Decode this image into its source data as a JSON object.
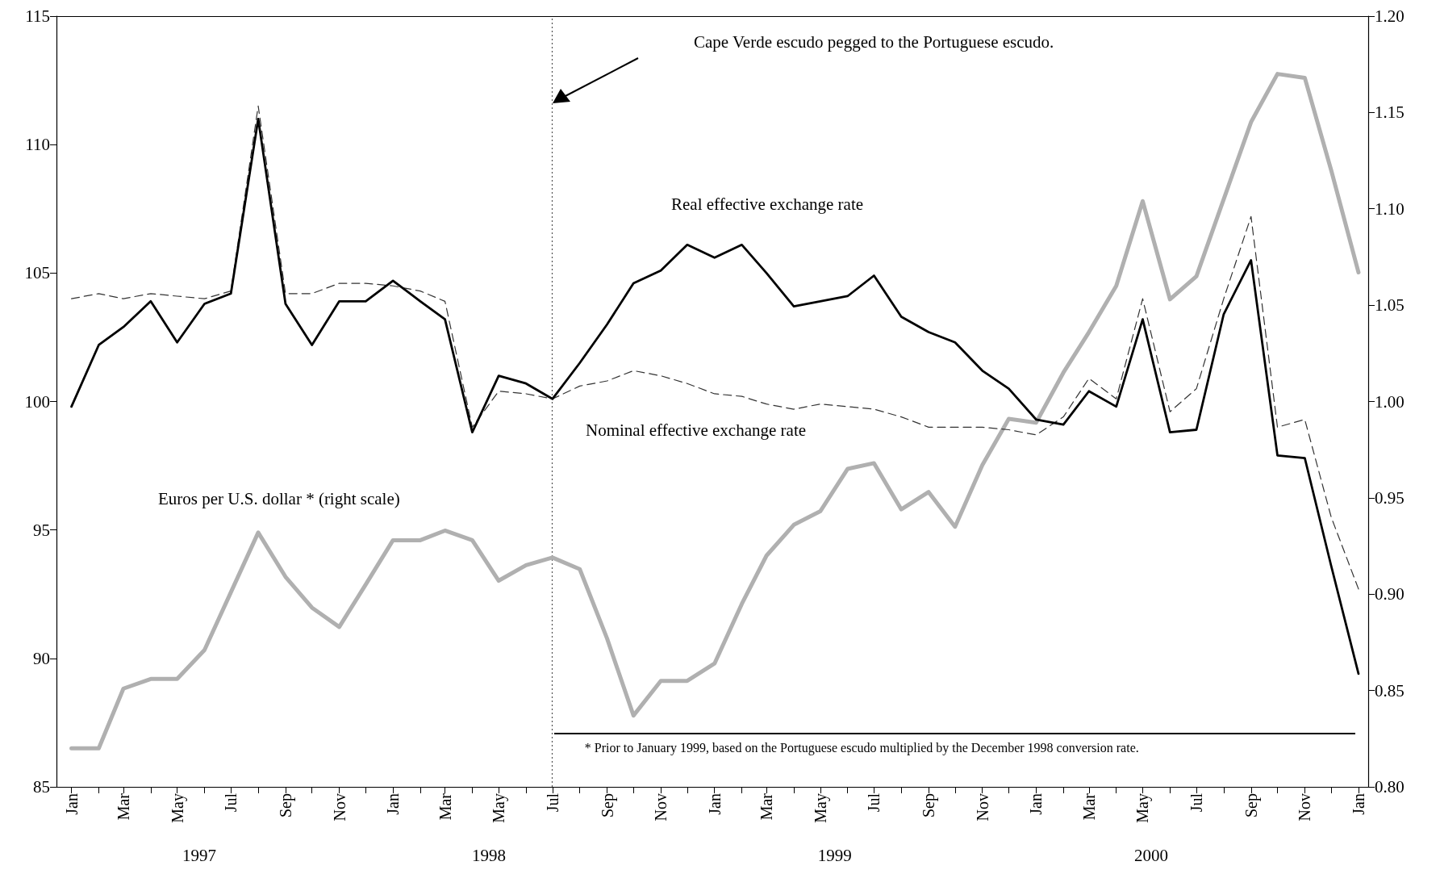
{
  "chart_data": {
    "type": "line",
    "x": [
      "1997-01",
      "1997-02",
      "1997-03",
      "1997-04",
      "1997-05",
      "1997-06",
      "1997-07",
      "1997-08",
      "1997-09",
      "1997-10",
      "1997-11",
      "1997-12",
      "1998-01",
      "1998-02",
      "1998-03",
      "1998-04",
      "1998-05",
      "1998-06",
      "1998-07",
      "1998-08",
      "1998-09",
      "1998-10",
      "1998-11",
      "1998-12",
      "1999-01",
      "1999-02",
      "1999-03",
      "1999-04",
      "1999-05",
      "1999-06",
      "1999-07",
      "1999-08",
      "1999-09",
      "1999-10",
      "1999-11",
      "1999-12",
      "2000-01",
      "2000-02",
      "2000-03",
      "2000-04",
      "2000-05",
      "2000-06",
      "2000-07",
      "2000-08",
      "2000-09",
      "2000-10",
      "2000-11",
      "2000-12",
      "2001-01"
    ],
    "series": [
      {
        "name": "Real effective exchange rate",
        "color": "#000000",
        "line_style": "solid",
        "values": [
          99.8,
          102.2,
          102.9,
          103.9,
          102.3,
          103.8,
          104.2,
          111.0,
          103.8,
          102.2,
          103.9,
          103.9,
          104.7,
          103.9,
          103.2,
          98.8,
          101.0,
          100.7,
          100.1,
          101.5,
          103.0,
          104.6,
          105.1,
          106.1,
          105.6,
          106.1,
          105.0,
          103.7,
          103.9,
          104.1,
          104.9,
          103.3,
          102.7,
          102.3,
          101.2,
          100.5,
          99.3,
          99.1,
          100.4,
          99.8,
          103.2,
          98.8,
          98.9,
          103.4,
          105.5,
          97.9,
          97.8,
          93.6,
          89.4
        ]
      },
      {
        "name": "Nominal effective exchange rate",
        "color": "#333333",
        "line_style": "dashed",
        "values": [
          104.0,
          104.2,
          104.0,
          104.2,
          104.1,
          104.0,
          104.3,
          111.5,
          104.2,
          104.2,
          104.6,
          104.6,
          104.5,
          104.3,
          103.9,
          99.0,
          100.4,
          100.3,
          100.1,
          100.6,
          100.8,
          101.2,
          101.0,
          100.7,
          100.3,
          100.2,
          99.9,
          99.7,
          99.9,
          99.8,
          99.7,
          99.4,
          99.0,
          99.0,
          99.0,
          98.9,
          98.7,
          99.4,
          100.9,
          100.1,
          104.0,
          99.6,
          100.5,
          104.0,
          107.2,
          99.0,
          99.3,
          95.5,
          92.7
        ]
      },
      {
        "name": "Euros per U.S. dollar *  (right scale)",
        "color": "#b0b0b0",
        "line_style": "solid",
        "axis": "y2",
        "values": [
          0.82,
          0.82,
          0.851,
          0.856,
          0.856,
          0.871,
          0.901,
          0.932,
          0.909,
          0.893,
          0.883,
          0.905,
          0.928,
          0.928,
          0.933,
          0.928,
          0.907,
          0.915,
          0.919,
          0.913,
          0.877,
          0.837,
          0.855,
          0.855,
          0.864,
          0.895,
          0.92,
          0.936,
          0.943,
          0.965,
          0.968,
          0.944,
          0.953,
          0.935,
          0.967,
          0.991,
          0.989,
          1.015,
          1.036,
          1.06,
          1.104,
          1.053,
          1.065,
          1.105,
          1.145,
          1.17,
          1.168,
          1.12,
          1.067
        ]
      }
    ],
    "xlim": [
      "1996-12-15",
      "2001-01-12"
    ],
    "xticks": [
      {
        "value": "1997-01",
        "label": "Jan"
      },
      {
        "value": "1997-02",
        "label": null
      },
      {
        "value": "1997-03",
        "label": "Mar"
      },
      {
        "value": "1997-04",
        "label": null
      },
      {
        "value": "1997-05",
        "label": "May"
      },
      {
        "value": "1997-06",
        "label": null
      },
      {
        "value": "1997-07",
        "label": "Jul"
      },
      {
        "value": "1997-08",
        "label": null
      },
      {
        "value": "1997-09",
        "label": "Sep"
      },
      {
        "value": "1997-10",
        "label": null
      },
      {
        "value": "1997-11",
        "label": "Nov"
      },
      {
        "value": "1997-12",
        "label": null
      },
      {
        "value": "1998-01",
        "label": "Jan"
      },
      {
        "value": "1998-02",
        "label": null
      },
      {
        "value": "1998-03",
        "label": "Mar"
      },
      {
        "value": "1998-04",
        "label": null
      },
      {
        "value": "1998-05",
        "label": "May"
      },
      {
        "value": "1998-06",
        "label": null
      },
      {
        "value": "1998-07",
        "label": "Jul"
      },
      {
        "value": "1998-08",
        "label": null
      },
      {
        "value": "1998-09",
        "label": "Sep"
      },
      {
        "value": "1998-10",
        "label": null
      },
      {
        "value": "1998-11",
        "label": "Nov"
      },
      {
        "value": "1998-12",
        "label": null
      },
      {
        "value": "1999-01",
        "label": "Jan"
      },
      {
        "value": "1999-02",
        "label": null
      },
      {
        "value": "1999-03",
        "label": "Mar"
      },
      {
        "value": "1999-04",
        "label": null
      },
      {
        "value": "1999-05",
        "label": "May"
      },
      {
        "value": "1999-06",
        "label": null
      },
      {
        "value": "1999-07",
        "label": "Jul"
      },
      {
        "value": "1999-08",
        "label": null
      },
      {
        "value": "1999-09",
        "label": "Sep"
      },
      {
        "value": "1999-10",
        "label": null
      },
      {
        "value": "1999-11",
        "label": "Nov"
      },
      {
        "value": "1999-12",
        "label": null
      },
      {
        "value": "2000-01",
        "label": "Jan"
      },
      {
        "value": "2000-02",
        "label": null
      },
      {
        "value": "2000-03",
        "label": "Mar"
      },
      {
        "value": "2000-04",
        "label": null
      },
      {
        "value": "2000-05",
        "label": "May"
      },
      {
        "value": "2000-06",
        "label": null
      },
      {
        "value": "2000-07",
        "label": "Jul"
      },
      {
        "value": "2000-08",
        "label": null
      },
      {
        "value": "2000-09",
        "label": "Sep"
      },
      {
        "value": "2000-10",
        "label": null
      },
      {
        "value": "2000-11",
        "label": "Nov"
      },
      {
        "value": "2000-12",
        "label": null
      },
      {
        "value": "2001-01",
        "label": "Jan"
      }
    ],
    "ylim": [
      85,
      115
    ],
    "yticks": [
      85,
      90,
      95,
      100,
      105,
      110,
      115
    ],
    "y2lim": [
      0.8,
      1.2
    ],
    "y2ticks": [
      {
        "value": 0.8,
        "label": "0.80"
      },
      {
        "value": 0.85,
        "label": "0.85"
      },
      {
        "value": 0.9,
        "label": "0.90"
      },
      {
        "value": 0.95,
        "label": "0.95"
      },
      {
        "value": 1.0,
        "label": "1.00"
      },
      {
        "value": 1.05,
        "label": "1.05"
      },
      {
        "value": 1.1,
        "label": "1.10"
      },
      {
        "value": 1.15,
        "label": "1.15"
      },
      {
        "value": 1.2,
        "label": "1.20"
      }
    ],
    "ref_lines": [
      {
        "axis": "x",
        "value": "1998-07",
        "color": "#555555",
        "line_style": "dotted"
      }
    ],
    "annotations": [
      "Cape Verde escudo pegged to the Portuguese escudo.",
      "* Prior to January 1999, based on the Portuguese escudo multiplied by the December 1998 conversion rate.",
      "1997",
      "1998",
      "1999",
      "2000"
    ],
    "marker": "none",
    "legend": false
  }
}
